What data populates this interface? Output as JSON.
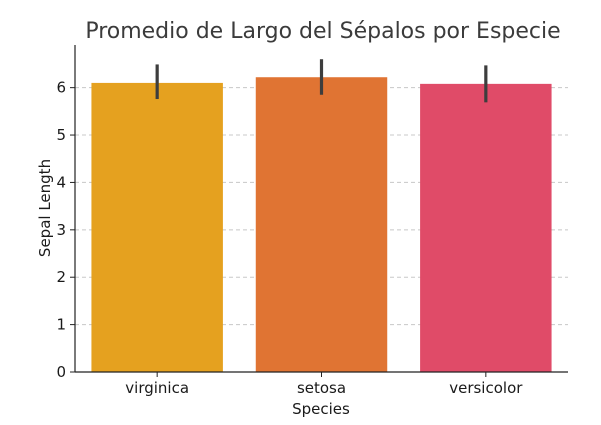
{
  "chart_data": {
    "type": "bar",
    "title": "Promedio de Largo del Sépalos por Especie",
    "xlabel": "Species",
    "ylabel": "Sepal Length",
    "categories": [
      "virginica",
      "setosa",
      "versicolor"
    ],
    "values": [
      6.1,
      6.22,
      6.08
    ],
    "error_low": [
      5.76,
      5.85,
      5.69
    ],
    "error_high": [
      6.49,
      6.6,
      6.47
    ],
    "colors": [
      "#e5a11f",
      "#e07433",
      "#e04b68"
    ],
    "ylim": [
      0,
      6.9
    ],
    "yticks": [
      "0",
      "1",
      "2",
      "3",
      "4",
      "5",
      "6"
    ],
    "grid": "horizontal dashed",
    "error_bar_color": "#3d3d3d"
  }
}
